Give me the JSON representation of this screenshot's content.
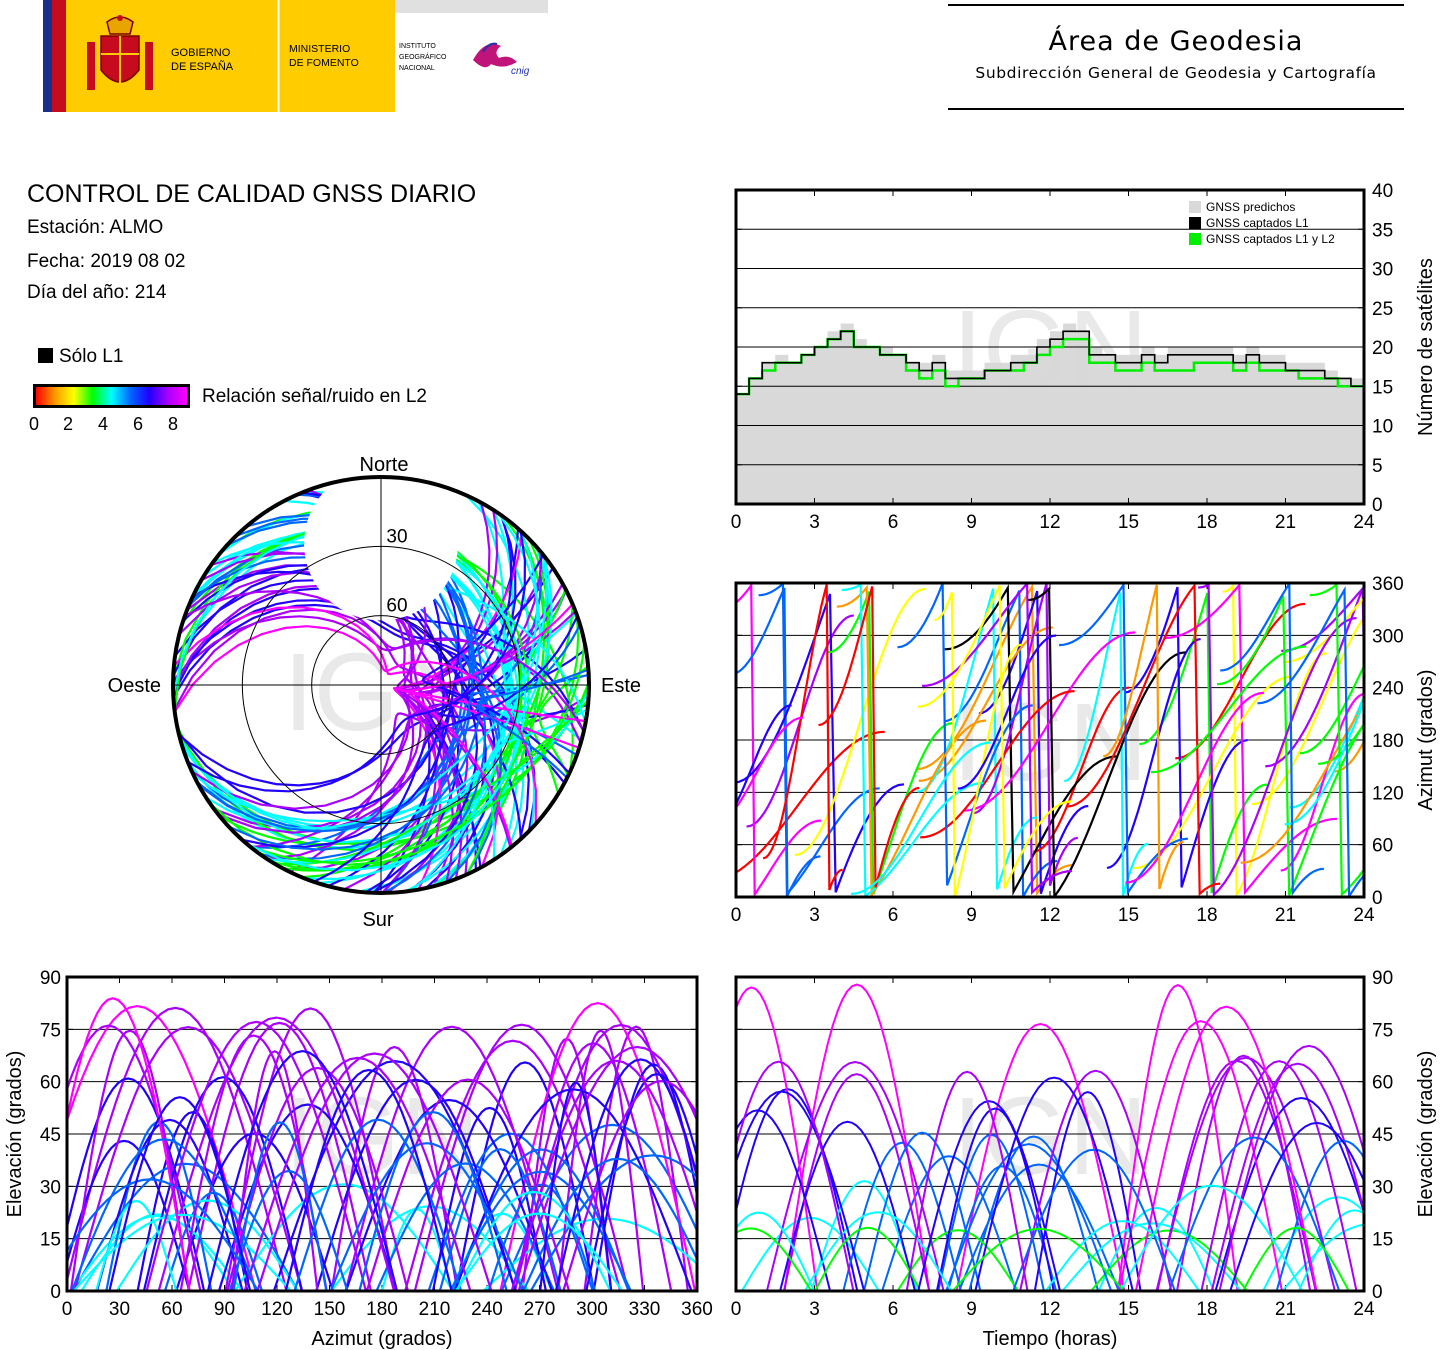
{
  "header": {
    "logo": {
      "gov": "GOBIERNO DE ESPAÑA",
      "ministry": "MINISTERIO DE FOMENTO",
      "institute": "INSTITUTO GEOGRÁFICO NACIONAL",
      "brand": "cnig"
    },
    "area_title": "Área de Geodesia",
    "area_subtitle": "Subdirección General de Geodesia y Cartografía"
  },
  "report": {
    "title": "CONTROL DE CALIDAD GNSS DIARIO",
    "station": "Estación: ALMO",
    "date": "Fecha: 2019 08 02",
    "doy": "Día del año: 214"
  },
  "legend": {
    "l1_only": "Sólo L1",
    "snr_label": "Relación señal/ruido en L2",
    "snr_ticks": [
      "0",
      "2",
      "4",
      "6",
      "8"
    ],
    "colors": [
      "#ff0000",
      "#ff9900",
      "#ffff00",
      "#00ff00",
      "#00ffff",
      "#0066ff",
      "#2200ff",
      "#aa00ff",
      "#ff00ff"
    ]
  },
  "watermark": "IGN",
  "chart_data": [
    {
      "type": "step",
      "id": "satellite-count",
      "ylabel": "Número de satélites",
      "xlim": [
        0,
        24
      ],
      "ylim": [
        0,
        40
      ],
      "x_ticks": [
        "0",
        "3",
        "6",
        "9",
        "12",
        "15",
        "18",
        "21",
        "24"
      ],
      "y_ticks": [
        "0",
        "5",
        "10",
        "15",
        "20",
        "25",
        "30",
        "35",
        "40"
      ],
      "grid": true,
      "legend": [
        "GNSS predichos",
        "GNSS captados L1",
        "GNSS captados L1 y L2"
      ],
      "legend_colors": [
        "#d9d9d9",
        "#000000",
        "#00ee00"
      ],
      "series": [
        {
          "name": "GNSS predichos",
          "x": [
            0,
            0.5,
            1,
            1.5,
            2,
            2.5,
            3,
            3.5,
            4,
            4.5,
            5,
            5.5,
            6,
            6.5,
            7,
            7.5,
            8,
            8.5,
            9,
            9.5,
            10,
            10.5,
            11,
            11.5,
            12,
            12.5,
            13,
            13.5,
            14,
            14.5,
            15,
            15.5,
            16,
            16.5,
            17,
            17.5,
            18,
            18.5,
            19,
            19.5,
            20,
            20.5,
            21,
            21.5,
            22,
            22.5,
            23,
            23.5,
            24
          ],
          "values": [
            14,
            16,
            18,
            19,
            18,
            19,
            20,
            22,
            23,
            21,
            20,
            20,
            19,
            18,
            18,
            19,
            17,
            17,
            17,
            18,
            18,
            19,
            19,
            21,
            22,
            23,
            22,
            20,
            19,
            19,
            19,
            20,
            19,
            20,
            20,
            20,
            20,
            20,
            19,
            20,
            19,
            19,
            18,
            18,
            18,
            17,
            16,
            16,
            14
          ]
        },
        {
          "name": "GNSS captados L1",
          "x": [
            0,
            0.5,
            1,
            1.5,
            2,
            2.5,
            3,
            3.5,
            4,
            4.5,
            5,
            5.5,
            6,
            6.5,
            7,
            7.5,
            8,
            8.5,
            9,
            9.5,
            10,
            10.5,
            11,
            11.5,
            12,
            12.5,
            13,
            13.5,
            14,
            14.5,
            15,
            15.5,
            16,
            16.5,
            17,
            17.5,
            18,
            18.5,
            19,
            19.5,
            20,
            20.5,
            21,
            21.5,
            22,
            22.5,
            23,
            23.5,
            24
          ],
          "values": [
            14,
            16,
            18,
            18,
            18,
            19,
            20,
            21,
            22,
            20,
            20,
            19,
            19,
            18,
            17,
            18,
            16,
            16,
            16,
            17,
            17,
            18,
            18,
            20,
            21,
            22,
            22,
            19,
            19,
            18,
            18,
            19,
            18,
            19,
            19,
            19,
            19,
            19,
            18,
            19,
            18,
            18,
            17,
            17,
            17,
            16,
            16,
            15,
            14
          ]
        },
        {
          "name": "GNSS captados L1 y L2",
          "x": [
            0,
            0.5,
            1,
            1.5,
            2,
            2.5,
            3,
            3.5,
            4,
            4.5,
            5,
            5.5,
            6,
            6.5,
            7,
            7.5,
            8,
            8.5,
            9,
            9.5,
            10,
            10.5,
            11,
            11.5,
            12,
            12.5,
            13,
            13.5,
            14,
            14.5,
            15,
            15.5,
            16,
            16.5,
            17,
            17.5,
            18,
            18.5,
            19,
            19.5,
            20,
            20.5,
            21,
            21.5,
            22,
            22.5,
            23,
            23.5,
            24
          ],
          "values": [
            14,
            16,
            17,
            18,
            18,
            19,
            20,
            21,
            22,
            20,
            20,
            19,
            19,
            17,
            16,
            17,
            15,
            16,
            16,
            17,
            17,
            17,
            18,
            19,
            20,
            21,
            21,
            18,
            18,
            17,
            17,
            18,
            17,
            17,
            17,
            18,
            18,
            18,
            17,
            18,
            17,
            17,
            17,
            16,
            16,
            16,
            15,
            15,
            14
          ]
        }
      ]
    },
    {
      "type": "polar-skyplot",
      "id": "skyplot",
      "direction_labels": {
        "north": "Norte",
        "south": "Sur",
        "east": "Este",
        "west": "Oeste"
      },
      "elevation_ring_labels": [
        "30",
        "60"
      ],
      "elevation_rings": [
        30,
        60
      ],
      "note": "satellite tracks colored by L2 signal/noise ratio"
    },
    {
      "type": "scatter",
      "id": "azimuth-vs-time",
      "ylabel": "Azimut (grados)",
      "xlim": [
        0,
        24
      ],
      "ylim": [
        0,
        360
      ],
      "x_ticks": [
        "0",
        "3",
        "6",
        "9",
        "12",
        "15",
        "18",
        "21",
        "24"
      ],
      "y_ticks": [
        "0",
        "60",
        "120",
        "180",
        "240",
        "300",
        "360"
      ],
      "grid": true
    },
    {
      "type": "scatter",
      "id": "elevation-vs-azimuth",
      "xlabel": "Azimut (grados)",
      "ylabel": "Elevación (grados)",
      "xlim": [
        0,
        360
      ],
      "ylim": [
        0,
        90
      ],
      "x_ticks": [
        "0",
        "30",
        "60",
        "90",
        "120",
        "150",
        "180",
        "210",
        "240",
        "270",
        "300",
        "330",
        "360"
      ],
      "y_ticks": [
        "0",
        "15",
        "30",
        "45",
        "60",
        "75",
        "90"
      ],
      "grid": true
    },
    {
      "type": "scatter",
      "id": "elevation-vs-time",
      "xlabel": "Tiempo (horas)",
      "ylabel": "Elevación (grados)",
      "xlim": [
        0,
        24
      ],
      "ylim": [
        0,
        90
      ],
      "x_ticks": [
        "0",
        "3",
        "6",
        "9",
        "12",
        "15",
        "18",
        "21",
        "24"
      ],
      "y_ticks": [
        "0",
        "15",
        "30",
        "45",
        "60",
        "75",
        "90"
      ],
      "grid": true
    }
  ]
}
